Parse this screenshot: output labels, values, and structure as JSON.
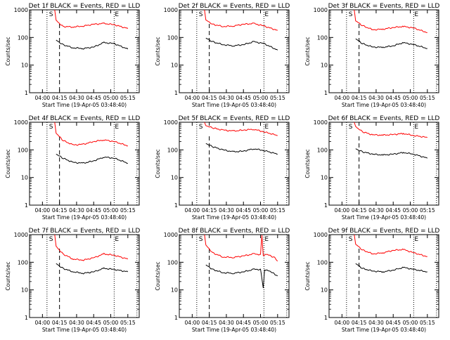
{
  "chart_data": [
    {
      "type": "line",
      "title": "Det 1f BLACK = Events, RED = LLD",
      "xlabel": "Start Time (19-Apr-05 03:48:40)",
      "ylabel": "Counts/sec",
      "yscale": "log",
      "ylim": [
        1,
        1000
      ],
      "x_ticks": [
        "04:00",
        "04:15",
        "04:30",
        "04:45",
        "05:00",
        "05:15"
      ],
      "y_ticks": [
        "1",
        "10",
        "100",
        "1000"
      ],
      "markers": {
        "S": "04:07",
        "E": "05:03"
      },
      "series": [
        {
          "color": "#ff0000",
          "values": [
            [
              4.18,
              1000
            ],
            [
              4.2,
              420
            ],
            [
              4.3,
              250
            ],
            [
              4.45,
              240
            ],
            [
              4.6,
              260
            ],
            [
              4.75,
              300
            ],
            [
              4.9,
              320
            ],
            [
              5.05,
              290
            ],
            [
              5.25,
              210
            ]
          ]
        },
        {
          "color": "#000000",
          "values": [
            [
              4.2,
              80
            ],
            [
              4.3,
              55
            ],
            [
              4.45,
              42
            ],
            [
              4.6,
              40
            ],
            [
              4.75,
              45
            ],
            [
              4.9,
              65
            ],
            [
              5.05,
              60
            ],
            [
              5.25,
              38
            ]
          ]
        }
      ]
    },
    {
      "type": "line",
      "title": "Det 2f BLACK = Events, RED = LLD",
      "xlabel": "Start Time (19-Apr-05 03:48:40)",
      "ylabel": "Counts/sec",
      "yscale": "log",
      "ylim": [
        1,
        1000
      ],
      "x_ticks": [
        "04:00",
        "04:15",
        "04:30",
        "04:45",
        "05:00",
        "05:15"
      ],
      "y_ticks": [
        "1",
        "10",
        "100",
        "1000"
      ],
      "markers": {
        "S": "04:07",
        "E": "05:03"
      },
      "series": [
        {
          "color": "#ff0000",
          "values": [
            [
              4.18,
              1000
            ],
            [
              4.2,
              430
            ],
            [
              4.3,
              300
            ],
            [
              4.45,
              250
            ],
            [
              4.6,
              260
            ],
            [
              4.75,
              300
            ],
            [
              4.9,
              320
            ],
            [
              5.05,
              260
            ],
            [
              5.25,
              180
            ]
          ]
        },
        {
          "color": "#000000",
          "values": [
            [
              4.2,
              95
            ],
            [
              4.3,
              70
            ],
            [
              4.45,
              55
            ],
            [
              4.6,
              50
            ],
            [
              4.75,
              55
            ],
            [
              4.9,
              70
            ],
            [
              5.05,
              60
            ],
            [
              5.25,
              35
            ]
          ]
        }
      ]
    },
    {
      "type": "line",
      "title": "Det 3f BLACK = Events, RED = LLD",
      "xlabel": "Start Time (19-Apr-05 03:48:40)",
      "ylabel": "Counts/sec",
      "yscale": "log",
      "ylim": [
        1,
        1000
      ],
      "x_ticks": [
        "04:00",
        "04:15",
        "04:30",
        "04:45",
        "05:00",
        "05:15"
      ],
      "y_ticks": [
        "1",
        "10",
        "100",
        "1000"
      ],
      "markers": {
        "S": "04:07",
        "E": "05:03"
      },
      "series": [
        {
          "color": "#ff0000",
          "values": [
            [
              4.18,
              1000
            ],
            [
              4.2,
              400
            ],
            [
              4.3,
              270
            ],
            [
              4.45,
              190
            ],
            [
              4.6,
              200
            ],
            [
              4.75,
              230
            ],
            [
              4.9,
              250
            ],
            [
              5.05,
              220
            ],
            [
              5.25,
              150
            ]
          ]
        },
        {
          "color": "#000000",
          "values": [
            [
              4.2,
              90
            ],
            [
              4.3,
              60
            ],
            [
              4.45,
              45
            ],
            [
              4.6,
              44
            ],
            [
              4.75,
              50
            ],
            [
              4.9,
              65
            ],
            [
              5.05,
              55
            ],
            [
              5.25,
              40
            ]
          ]
        }
      ]
    },
    {
      "type": "line",
      "title": "Det 4f BLACK = Events, RED = LLD",
      "xlabel": "Start Time (19-Apr-05 03:48:40)",
      "ylabel": "Counts/sec",
      "yscale": "log",
      "ylim": [
        1,
        1000
      ],
      "x_ticks": [
        "04:00",
        "04:15",
        "04:30",
        "04:45",
        "05:00",
        "05:15"
      ],
      "y_ticks": [
        "1",
        "10",
        "100",
        "1000"
      ],
      "markers": {
        "S": "04:07",
        "E": "05:03"
      },
      "series": [
        {
          "color": "#ff0000",
          "values": [
            [
              4.18,
              1000
            ],
            [
              4.2,
              400
            ],
            [
              4.3,
              220
            ],
            [
              4.45,
              150
            ],
            [
              4.6,
              160
            ],
            [
              4.75,
              200
            ],
            [
              4.9,
              230
            ],
            [
              5.05,
              200
            ],
            [
              5.25,
              140
            ]
          ]
        },
        {
          "color": "#000000",
          "values": [
            [
              4.2,
              70
            ],
            [
              4.3,
              50
            ],
            [
              4.45,
              35
            ],
            [
              4.6,
              33
            ],
            [
              4.75,
              40
            ],
            [
              4.9,
              55
            ],
            [
              5.05,
              50
            ],
            [
              5.25,
              33
            ]
          ]
        }
      ]
    },
    {
      "type": "line",
      "title": "Det 5f BLACK = Events, RED = LLD",
      "xlabel": "Start Time (19-Apr-05 03:48:40)",
      "ylabel": "Counts/sec",
      "yscale": "log",
      "ylim": [
        1,
        1000
      ],
      "x_ticks": [
        "04:00",
        "04:15",
        "04:30",
        "04:45",
        "05:00",
        "05:15"
      ],
      "y_ticks": [
        "1",
        "10",
        "100",
        "1000"
      ],
      "markers": {
        "S": "04:07",
        "E": "05:03"
      },
      "series": [
        {
          "color": "#ff0000",
          "values": [
            [
              4.18,
              1000
            ],
            [
              4.2,
              750
            ],
            [
              4.3,
              620
            ],
            [
              4.45,
              520
            ],
            [
              4.6,
              480
            ],
            [
              4.75,
              520
            ],
            [
              4.9,
              560
            ],
            [
              5.05,
              450
            ],
            [
              5.25,
              330
            ]
          ]
        },
        {
          "color": "#000000",
          "values": [
            [
              4.2,
              170
            ],
            [
              4.3,
              130
            ],
            [
              4.45,
              100
            ],
            [
              4.6,
              85
            ],
            [
              4.75,
              90
            ],
            [
              4.9,
              110
            ],
            [
              5.05,
              95
            ],
            [
              5.25,
              70
            ]
          ]
        }
      ]
    },
    {
      "type": "line",
      "title": "Det 6f BLACK = Events, RED = LLD",
      "xlabel": "Start Time (19-Apr-05 03:48:40)",
      "ylabel": "Counts/sec",
      "yscale": "log",
      "ylim": [
        1,
        1000
      ],
      "x_ticks": [
        "04:00",
        "04:15",
        "04:30",
        "04:45",
        "05:00",
        "05:15"
      ],
      "y_ticks": [
        "1",
        "10",
        "100",
        "1000"
      ],
      "markers": {
        "S": "04:07",
        "E": "05:03"
      },
      "series": [
        {
          "color": "#ff0000",
          "values": [
            [
              4.18,
              1000
            ],
            [
              4.2,
              700
            ],
            [
              4.3,
              450
            ],
            [
              4.45,
              350
            ],
            [
              4.6,
              340
            ],
            [
              4.75,
              360
            ],
            [
              4.9,
              390
            ],
            [
              5.05,
              330
            ],
            [
              5.25,
              280
            ]
          ]
        },
        {
          "color": "#000000",
          "values": [
            [
              4.2,
              110
            ],
            [
              4.3,
              85
            ],
            [
              4.45,
              70
            ],
            [
              4.6,
              65
            ],
            [
              4.75,
              70
            ],
            [
              4.9,
              80
            ],
            [
              5.05,
              70
            ],
            [
              5.25,
              50
            ]
          ]
        }
      ]
    },
    {
      "type": "line",
      "title": "Det 7f BLACK = Events, RED = LLD",
      "xlabel": "Start Time (19-Apr-05 03:48:40)",
      "ylabel": "Counts/sec",
      "yscale": "log",
      "ylim": [
        1,
        1000
      ],
      "x_ticks": [
        "04:00",
        "04:15",
        "04:30",
        "04:45",
        "05:00",
        "05:15"
      ],
      "y_ticks": [
        "1",
        "10",
        "100",
        "1000"
      ],
      "markers": {
        "S": "04:07",
        "E": "05:03"
      },
      "series": [
        {
          "color": "#ff0000",
          "values": [
            [
              4.18,
              1000
            ],
            [
              4.2,
              380
            ],
            [
              4.3,
              200
            ],
            [
              4.45,
              130
            ],
            [
              4.6,
              120
            ],
            [
              4.75,
              145
            ],
            [
              4.9,
              200
            ],
            [
              5.05,
              180
            ],
            [
              5.25,
              130
            ]
          ]
        },
        {
          "color": "#000000",
          "values": [
            [
              4.2,
              90
            ],
            [
              4.3,
              60
            ],
            [
              4.45,
              45
            ],
            [
              4.6,
              40
            ],
            [
              4.75,
              45
            ],
            [
              4.9,
              60
            ],
            [
              5.05,
              55
            ],
            [
              5.25,
              45
            ]
          ]
        }
      ]
    },
    {
      "type": "line",
      "title": "Det 8f BLACK = Events, RED = LLD",
      "xlabel": "Start Time (19-Apr-05 03:48:40)",
      "ylabel": "Counts/sec",
      "yscale": "log",
      "ylim": [
        1,
        1000
      ],
      "x_ticks": [
        "04:00",
        "04:15",
        "04:30",
        "04:45",
        "05:00",
        "05:15"
      ],
      "y_ticks": [
        "1",
        "10",
        "100",
        "1000"
      ],
      "markers": {
        "S": "04:07",
        "E": "05:03"
      },
      "series": [
        {
          "color": "#ff0000",
          "values": [
            [
              4.18,
              1000
            ],
            [
              4.2,
              420
            ],
            [
              4.3,
              220
            ],
            [
              4.45,
              155
            ],
            [
              4.6,
              150
            ],
            [
              4.75,
              170
            ],
            [
              4.9,
              200
            ],
            [
              5.0,
              190
            ],
            [
              5.02,
              1000
            ],
            [
              5.04,
              180
            ],
            [
              5.1,
              190
            ],
            [
              5.2,
              150
            ],
            [
              5.25,
              110
            ]
          ]
        },
        {
          "color": "#000000",
          "values": [
            [
              4.2,
              80
            ],
            [
              4.3,
              55
            ],
            [
              4.45,
              42
            ],
            [
              4.6,
              40
            ],
            [
              4.75,
              45
            ],
            [
              4.9,
              55
            ],
            [
              5.0,
              55
            ],
            [
              5.04,
              12
            ],
            [
              5.06,
              55
            ],
            [
              5.15,
              45
            ],
            [
              5.25,
              32
            ]
          ]
        }
      ]
    },
    {
      "type": "line",
      "title": "Det 9f BLACK = Events, RED = LLD",
      "xlabel": "Start Time (19-Apr-05 03:48:40)",
      "ylabel": "Counts/sec",
      "yscale": "log",
      "ylim": [
        1,
        1000
      ],
      "x_ticks": [
        "04:00",
        "04:15",
        "04:30",
        "04:45",
        "05:00",
        "05:15"
      ],
      "y_ticks": [
        "1",
        "10",
        "100",
        "1000"
      ],
      "markers": {
        "S": "04:07",
        "E": "05:03"
      },
      "series": [
        {
          "color": "#ff0000",
          "values": [
            [
              4.18,
              1000
            ],
            [
              4.2,
              450
            ],
            [
              4.3,
              280
            ],
            [
              4.45,
              200
            ],
            [
              4.6,
              220
            ],
            [
              4.75,
              270
            ],
            [
              4.9,
              290
            ],
            [
              5.05,
              220
            ],
            [
              5.25,
              160
            ]
          ]
        },
        {
          "color": "#000000",
          "values": [
            [
              4.2,
              90
            ],
            [
              4.3,
              60
            ],
            [
              4.45,
              48
            ],
            [
              4.6,
              45
            ],
            [
              4.75,
              52
            ],
            [
              4.9,
              65
            ],
            [
              5.05,
              55
            ],
            [
              5.25,
              45
            ]
          ]
        }
      ]
    }
  ]
}
